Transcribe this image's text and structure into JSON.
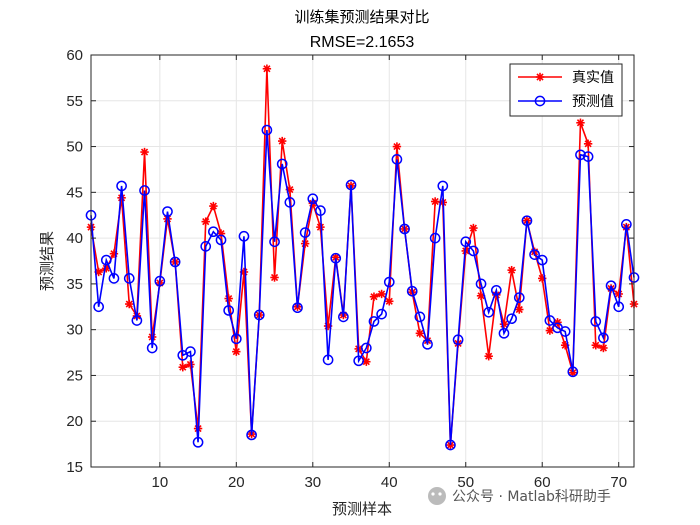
{
  "watermark": "公众号 · Matlab科研助手",
  "colors": {
    "true": "#ff0000",
    "pred": "#0000ff",
    "grid": "#e6e6e6",
    "axis": "#262626"
  },
  "chart_data": {
    "type": "line",
    "title": "训练集预测结果对比",
    "subtitle": "RMSE=2.1653",
    "xlabel": "预测样本",
    "ylabel": "预测结果",
    "xlim": [
      1,
      72
    ],
    "ylim": [
      15,
      60
    ],
    "xticks": [
      10,
      20,
      30,
      40,
      50,
      60,
      70
    ],
    "yticks": [
      15,
      20,
      25,
      30,
      35,
      40,
      45,
      50,
      55,
      60
    ],
    "grid": true,
    "legend_position": "top-right",
    "series": [
      {
        "name": "真实值",
        "marker": "asterisk",
        "values": [
          41.2,
          36.3,
          36.7,
          38.3,
          44.4,
          32.8,
          31.5,
          49.4,
          29.2,
          35.1,
          42.1,
          37.4,
          25.9,
          26.2,
          19.2,
          41.8,
          43.5,
          40.5,
          33.4,
          27.6,
          36.3,
          18.6,
          31.6,
          58.5,
          35.7,
          50.6,
          45.3,
          32.5,
          39.4,
          43.8,
          41.2,
          30.4,
          37.9,
          31.6,
          45.7,
          27.9,
          26.5,
          33.6,
          33.9,
          33.1,
          50.0,
          41.0,
          34.1,
          29.6,
          28.8,
          44.0,
          43.9,
          17.4,
          28.5,
          38.6,
          41.1,
          33.7,
          27.1,
          33.8,
          30.6,
          36.5,
          32.2,
          41.9,
          38.5,
          35.6,
          29.9,
          30.8,
          28.3,
          25.3,
          52.6,
          50.3,
          28.3,
          28.0,
          34.5,
          33.9,
          41.2,
          32.8
        ]
      },
      {
        "name": "预测值",
        "marker": "circle",
        "values": [
          42.5,
          32.5,
          37.6,
          35.6,
          45.7,
          35.6,
          31.0,
          45.2,
          28.0,
          35.3,
          42.9,
          37.4,
          27.2,
          27.6,
          17.7,
          39.1,
          40.7,
          39.8,
          32.1,
          29.0,
          40.2,
          18.5,
          31.6,
          51.8,
          39.6,
          48.1,
          43.9,
          32.4,
          40.6,
          44.3,
          43.0,
          26.7,
          37.8,
          31.4,
          45.8,
          26.6,
          28.0,
          30.9,
          31.7,
          35.2,
          48.6,
          41.0,
          34.2,
          31.4,
          28.4,
          40.0,
          45.7,
          17.4,
          28.9,
          39.6,
          38.6,
          35.0,
          31.9,
          34.3,
          29.6,
          31.2,
          33.5,
          41.9,
          38.2,
          37.6,
          31.0,
          30.2,
          29.8,
          25.4,
          49.1,
          48.9,
          30.9,
          29.1,
          34.8,
          32.5,
          41.5,
          35.7
        ]
      }
    ]
  }
}
